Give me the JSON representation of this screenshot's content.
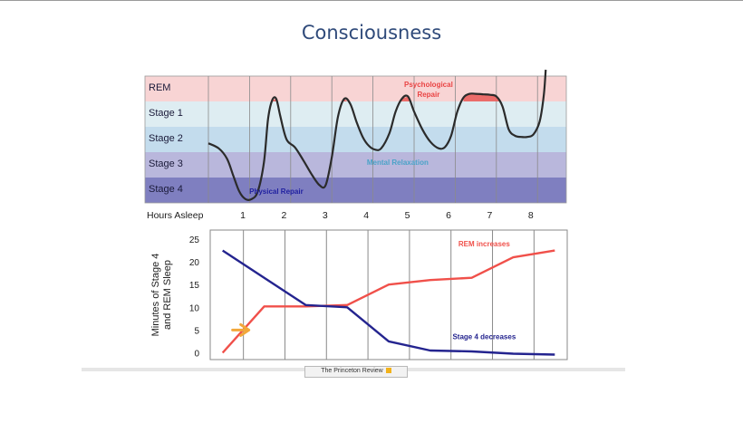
{
  "slide": {
    "title": "Consciousness"
  },
  "footer": {
    "logo_text": "The Princeton Review"
  },
  "chart_data": [
    {
      "type": "line",
      "title": "",
      "xlabel": "Hours Asleep",
      "ylabel": "",
      "stages": [
        "REM",
        "Stage 1",
        "Stage 2",
        "Stage 3",
        "Stage 4"
      ],
      "stage_colors": [
        "#f8d4d4",
        "#deedf2",
        "#c3dced",
        "#b9b7dc",
        "#7f7fc0"
      ],
      "x_ticks": [
        1,
        2,
        3,
        4,
        5,
        6,
        7,
        8
      ],
      "xlim": [
        0,
        8.7
      ],
      "series": [
        {
          "color": "#2b2b2b",
          "x": [
            0,
            0.25,
            0.45,
            0.6,
            0.75,
            0.9,
            1.05,
            1.2,
            1.35,
            1.45,
            1.55,
            1.65,
            1.75,
            1.9,
            2.1,
            2.3,
            2.5,
            2.7,
            2.85,
            3.0,
            3.15,
            3.3,
            3.45,
            3.6,
            3.75,
            3.9,
            4.05,
            4.2,
            4.4,
            4.55,
            4.7,
            4.85,
            5.0,
            5.2,
            5.4,
            5.6,
            5.75,
            5.9,
            6.05,
            6.2,
            6.35,
            6.5,
            6.7,
            6.85,
            7.0,
            7.15,
            7.3,
            7.45,
            7.6,
            7.75,
            7.9,
            8.05,
            8.15,
            8.2
          ],
          "y": [
            2.35,
            2.15,
            1.75,
            1.1,
            0.45,
            0.15,
            0.15,
            0.45,
            1.6,
            3.3,
            4.05,
            4.1,
            3.4,
            2.5,
            2.2,
            1.7,
            1.15,
            0.7,
            0.7,
            1.8,
            3.4,
            4.1,
            3.9,
            3.2,
            2.6,
            2.25,
            2.1,
            2.15,
            2.75,
            3.6,
            4.1,
            4.2,
            3.6,
            2.9,
            2.4,
            2.15,
            2.2,
            2.65,
            3.6,
            4.15,
            4.3,
            4.3,
            4.28,
            4.26,
            4.2,
            3.8,
            2.9,
            2.65,
            2.6,
            2.6,
            2.7,
            3.2,
            4.2,
            5.25
          ],
          "name": ""
        }
      ],
      "rem_peaks": [
        {
          "x": [
            1.45,
            1.65,
            1.75
          ]
        },
        {
          "x": [
            3.15,
            3.3,
            3.45
          ]
        },
        {
          "x": [
            4.55,
            4.85,
            5.0
          ]
        },
        {
          "x": [
            6.2,
            6.5,
            7.15
          ]
        }
      ],
      "rem_color": "#e9605e",
      "annotations": [
        {
          "text": "Psychological",
          "color": "#e94444",
          "x": 5.35,
          "stage": "REM",
          "offset": -5
        },
        {
          "text": "Repair",
          "color": "#e94444",
          "x": 5.35,
          "stage": "REM",
          "offset": 6
        },
        {
          "text": "Mental Relaxation",
          "color": "#4aa3c8",
          "x": 4.6,
          "stage": "Stage 3",
          "offset": -3
        },
        {
          "text": "Physical Repair",
          "color": "#1f1fa0",
          "x": 1.65,
          "stage": "Stage 4",
          "offset": 1
        }
      ]
    },
    {
      "type": "line",
      "title": "",
      "xlabel": "",
      "ylabel": "Minutes of Stage 4 and REM Sleep",
      "ylabel_lines": [
        "Minutes of Stage 4",
        "and REM Sleep"
      ],
      "x": [
        0,
        1,
        2,
        3,
        4,
        5,
        6,
        7,
        8
      ],
      "x_ticks": [
        1,
        2,
        3,
        4,
        5,
        6,
        7,
        8
      ],
      "xlim": [
        -0.3,
        8.3
      ],
      "ylim": [
        -1.5,
        27
      ],
      "y_ticks": [
        0,
        5,
        10,
        15,
        20,
        25
      ],
      "series": [
        {
          "name": "",
          "color": "#f0504a",
          "values": [
            0,
            10.2,
            10.2,
            10.5,
            15,
            16,
            16.5,
            21,
            22.5
          ]
        },
        {
          "name": "",
          "color": "#24248f",
          "values": [
            22.5,
            16.5,
            10.5,
            10,
            2.5,
            0.5,
            0.3,
            -0.2,
            -0.4
          ]
        }
      ],
      "annotations": [
        {
          "text": "REM increases",
          "color": "#f0504a",
          "x": 6.3,
          "y": 24
        },
        {
          "text": "Stage 4 decreases",
          "color": "#24248f",
          "x": 6.3,
          "y": 3.6
        }
      ],
      "highlight_arrow": {
        "color": "#f2a83a",
        "x": 0.5,
        "y": 5
      }
    }
  ]
}
